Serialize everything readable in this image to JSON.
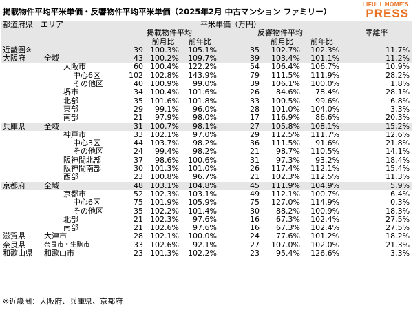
{
  "title": "掲載物件平均平米単価・反響物件平均平米単価（2025年2月 中古マンション ファミリー）",
  "logo": {
    "top": "LIFULL HOME'S",
    "main": "PRESS"
  },
  "header": {
    "area": "都道府県　エリア",
    "unit_price": "平米単価（万円）",
    "listed_avg": "掲載物件平均",
    "response_avg": "反響物件平均",
    "divergence": "乖離率",
    "mom": "前月比",
    "yoy": "前年比"
  },
  "rows": [
    {
      "a": "近畿圏※",
      "b": "",
      "lp": "39",
      "lm": "100.3%",
      "ly": "105.1%",
      "rp": "35",
      "rm": "102.7%",
      "ry": "102.3%",
      "d": "11.7%",
      "gray": true,
      "type": "top"
    },
    {
      "a": "大阪府",
      "b": "全域",
      "lp": "43",
      "lm": "100.2%",
      "ly": "109.7%",
      "rp": "39",
      "rm": "103.4%",
      "ry": "101.1%",
      "d": "11.2%",
      "gray": true,
      "type": "pref"
    },
    {
      "a": "",
      "b": "大阪市",
      "lp": "60",
      "lm": "100.4%",
      "ly": "122.2%",
      "rp": "54",
      "rm": "106.4%",
      "ry": "106.7%",
      "d": "10.9%",
      "type": "city"
    },
    {
      "a": "",
      "b": "中心6区",
      "lp": "102",
      "lm": "102.8%",
      "ly": "143.9%",
      "rp": "79",
      "rm": "111.5%",
      "ry": "111.9%",
      "d": "28.2%",
      "type": "sub"
    },
    {
      "a": "",
      "b": "その他区",
      "lp": "40",
      "lm": "100.9%",
      "ly": "99.0%",
      "rp": "39",
      "rm": "106.1%",
      "ry": "100.0%",
      "d": "1.8%",
      "type": "sub"
    },
    {
      "a": "",
      "b": "堺市",
      "lp": "34",
      "lm": "100.4%",
      "ly": "101.6%",
      "rp": "26",
      "rm": "84.6%",
      "ry": "78.4%",
      "d": "28.1%",
      "type": "city"
    },
    {
      "a": "",
      "b": "北部",
      "lp": "35",
      "lm": "101.6%",
      "ly": "101.8%",
      "rp": "33",
      "rm": "100.5%",
      "ry": "99.6%",
      "d": "6.8%",
      "type": "city"
    },
    {
      "a": "",
      "b": "東部",
      "lp": "29",
      "lm": "99.1%",
      "ly": "96.0%",
      "rp": "28",
      "rm": "101.0%",
      "ry": "104.0%",
      "d": "3.3%",
      "type": "city"
    },
    {
      "a": "",
      "b": "南部",
      "lp": "21",
      "lm": "97.9%",
      "ly": "98.0%",
      "rp": "17",
      "rm": "116.9%",
      "ry": "86.6%",
      "d": "20.3%",
      "type": "city"
    },
    {
      "a": "兵庫県",
      "b": "全域",
      "lp": "31",
      "lm": "100.7%",
      "ly": "98.1%",
      "rp": "27",
      "rm": "105.8%",
      "ry": "108.1%",
      "d": "15.2%",
      "gray": true,
      "type": "pref"
    },
    {
      "a": "",
      "b": "神戸市",
      "lp": "33",
      "lm": "102.1%",
      "ly": "97.0%",
      "rp": "29",
      "rm": "112.5%",
      "ry": "111.7%",
      "d": "12.6%",
      "type": "city"
    },
    {
      "a": "",
      "b": "中心3区",
      "lp": "44",
      "lm": "103.7%",
      "ly": "98.2%",
      "rp": "36",
      "rm": "111.5%",
      "ry": "91.6%",
      "d": "21.8%",
      "type": "sub"
    },
    {
      "a": "",
      "b": "その他区",
      "lp": "24",
      "lm": "99.4%",
      "ly": "98.2%",
      "rp": "21",
      "rm": "98.7%",
      "ry": "110.5%",
      "d": "14.1%",
      "type": "sub"
    },
    {
      "a": "",
      "b": "阪神間北部",
      "lp": "37",
      "lm": "98.6%",
      "ly": "100.6%",
      "rp": "31",
      "rm": "97.3%",
      "ry": "93.2%",
      "d": "18.4%",
      "type": "city"
    },
    {
      "a": "",
      "b": "阪神間南部",
      "lp": "30",
      "lm": "101.3%",
      "ly": "101.0%",
      "rp": "26",
      "rm": "117.4%",
      "ry": "112.1%",
      "d": "15.4%",
      "type": "city"
    },
    {
      "a": "",
      "b": "西部",
      "lp": "23",
      "lm": "100.8%",
      "ly": "96.7%",
      "rp": "21",
      "rm": "102.3%",
      "ry": "112.5%",
      "d": "11.3%",
      "type": "city"
    },
    {
      "a": "京都府",
      "b": "全域",
      "lp": "48",
      "lm": "103.1%",
      "ly": "104.8%",
      "rp": "45",
      "rm": "111.9%",
      "ry": "104.9%",
      "d": "5.9%",
      "gray": true,
      "type": "pref"
    },
    {
      "a": "",
      "b": "京都市",
      "lp": "52",
      "lm": "102.3%",
      "ly": "103.1%",
      "rp": "49",
      "rm": "112.1%",
      "ry": "100.7%",
      "d": "6.4%",
      "type": "city"
    },
    {
      "a": "",
      "b": "中心6区",
      "lp": "75",
      "lm": "101.9%",
      "ly": "105.9%",
      "rp": "75",
      "rm": "127.0%",
      "ry": "114.9%",
      "d": "0.3%",
      "type": "sub"
    },
    {
      "a": "",
      "b": "その他区",
      "lp": "35",
      "lm": "102.2%",
      "ly": "101.4%",
      "rp": "30",
      "rm": "88.2%",
      "ry": "100.9%",
      "d": "18.3%",
      "type": "sub"
    },
    {
      "a": "",
      "b": "北部",
      "lp": "21",
      "lm": "102.3%",
      "ly": "97.6%",
      "rp": "16",
      "rm": "67.3%",
      "ry": "102.4%",
      "d": "27.5%",
      "type": "city"
    },
    {
      "a": "",
      "b": "南部",
      "lp": "21",
      "lm": "102.6%",
      "ly": "97.6%",
      "rp": "16",
      "rm": "67.3%",
      "ry": "102.4%",
      "d": "27.5%",
      "type": "city"
    },
    {
      "a": "滋賀県",
      "b": "大津市",
      "lp": "28",
      "lm": "102.1%",
      "ly": "100.0%",
      "rp": "24",
      "rm": "77.6%",
      "ry": "101.2%",
      "d": "18.2%",
      "type": "pref2"
    },
    {
      "a": "奈良県",
      "b": "奈良市・生駒市",
      "lp": "33",
      "lm": "102.6%",
      "ly": "92.1%",
      "rp": "27",
      "rm": "107.0%",
      "ry": "102.0%",
      "d": "21.3%",
      "type": "pref2",
      "small": true
    },
    {
      "a": "和歌山県",
      "b": "和歌山市",
      "lp": "23",
      "lm": "101.3%",
      "ly": "102.2%",
      "rp": "23",
      "rm": "95.4%",
      "ry": "126.6%",
      "d": "3.3%",
      "type": "pref2"
    }
  ],
  "footnote": "※近畿圏：大阪府、兵庫県、京都府"
}
